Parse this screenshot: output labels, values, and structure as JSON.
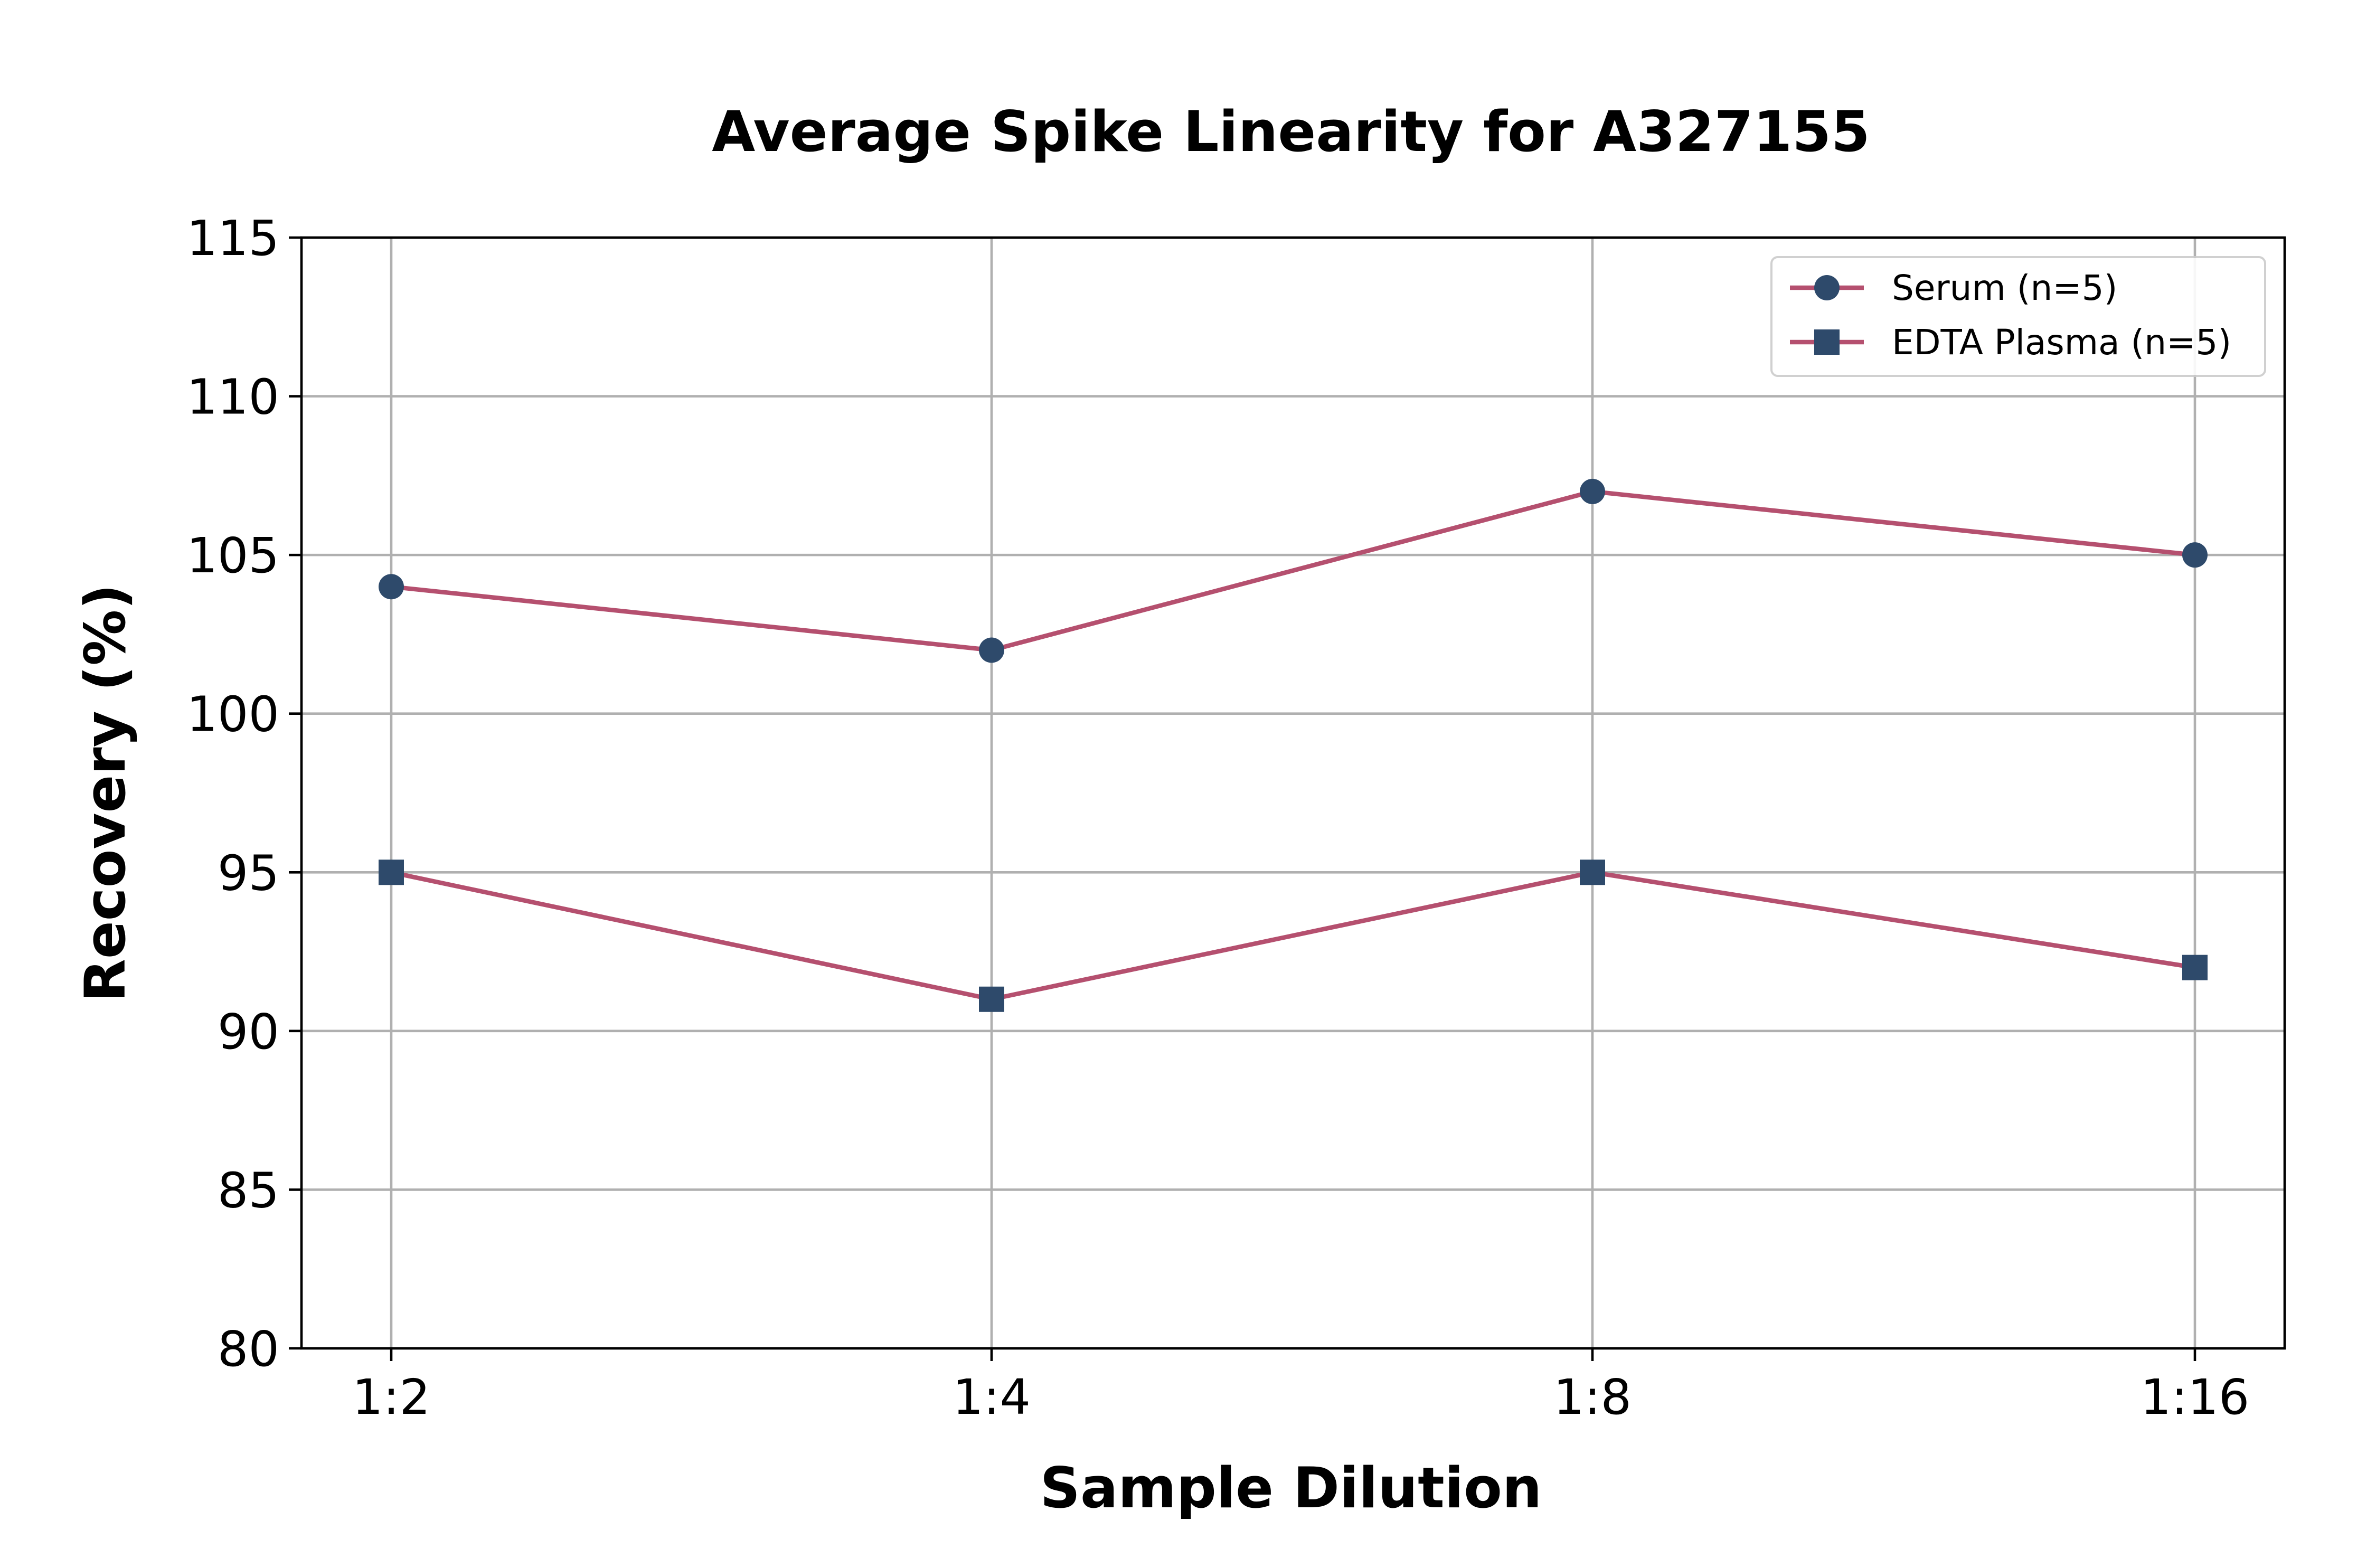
{
  "chart_data": {
    "type": "line",
    "title": "Average Spike Linearity for A327155",
    "xlabel": "Sample Dilution",
    "ylabel": "Recovery (%)",
    "categories": [
      "1:2",
      "1:4",
      "1:8",
      "1:16"
    ],
    "ylim": [
      80,
      115
    ],
    "yticks": [
      80,
      85,
      90,
      95,
      100,
      105,
      110,
      115
    ],
    "grid": true,
    "legend_position": "top-right",
    "line_color": "#b5506f",
    "marker_color": "#2e4a6b",
    "series": [
      {
        "name": "Serum (n=5)",
        "marker": "circle",
        "values": [
          104,
          102,
          107,
          105
        ]
      },
      {
        "name": "EDTA Plasma (n=5)",
        "marker": "square",
        "values": [
          95,
          91,
          95,
          92
        ]
      }
    ]
  }
}
